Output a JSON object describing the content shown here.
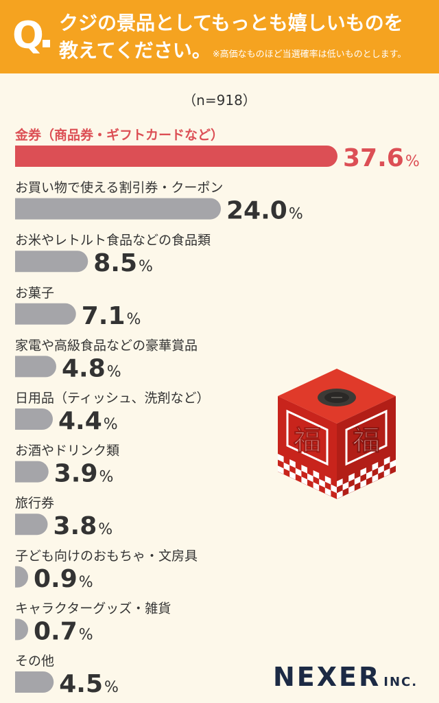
{
  "header": {
    "q_letter": "Q",
    "line1": "クジの景品としてもっとも嬉しいものを",
    "line2": "教えてください。",
    "note": "※高価なものほど当選確率は低いものとします。"
  },
  "sample": "（n=918）",
  "chart_data": {
    "type": "bar",
    "orientation": "horizontal",
    "unit": "%",
    "categories": [
      "金券（商品券・ギフトカードなど）",
      "お買い物で使える割引券・クーポン",
      "お米やレトルト食品などの食品類",
      "お菓子",
      "家電や高級食品などの豪華賞品",
      "日用品（ティッシュ、洗剤など）",
      "お酒やドリンク類",
      "旅行券",
      "子ども向けのおもちゃ・文房具",
      "キャラクターグッズ・雑貨",
      "その他"
    ],
    "values": [
      37.6,
      24.0,
      8.5,
      7.1,
      4.8,
      4.4,
      3.9,
      3.8,
      0.9,
      0.7,
      4.5
    ],
    "value_labels": [
      "37.6",
      "24.0",
      "8.5",
      "7.1",
      "4.8",
      "4.4",
      "3.9",
      "3.8",
      "0.9",
      "0.7",
      "4.5"
    ],
    "highlight_index": 0,
    "colors": {
      "highlight": "#dc4f55",
      "default": "#a5a5a9",
      "highlight_text": "#dc4f55",
      "label_text": "#333333",
      "value_text": "#333333"
    }
  },
  "decoration": {
    "box_char": "福",
    "icon": "lottery-box-icon"
  },
  "logo": {
    "main": "NEXER",
    "sub": "INC."
  }
}
